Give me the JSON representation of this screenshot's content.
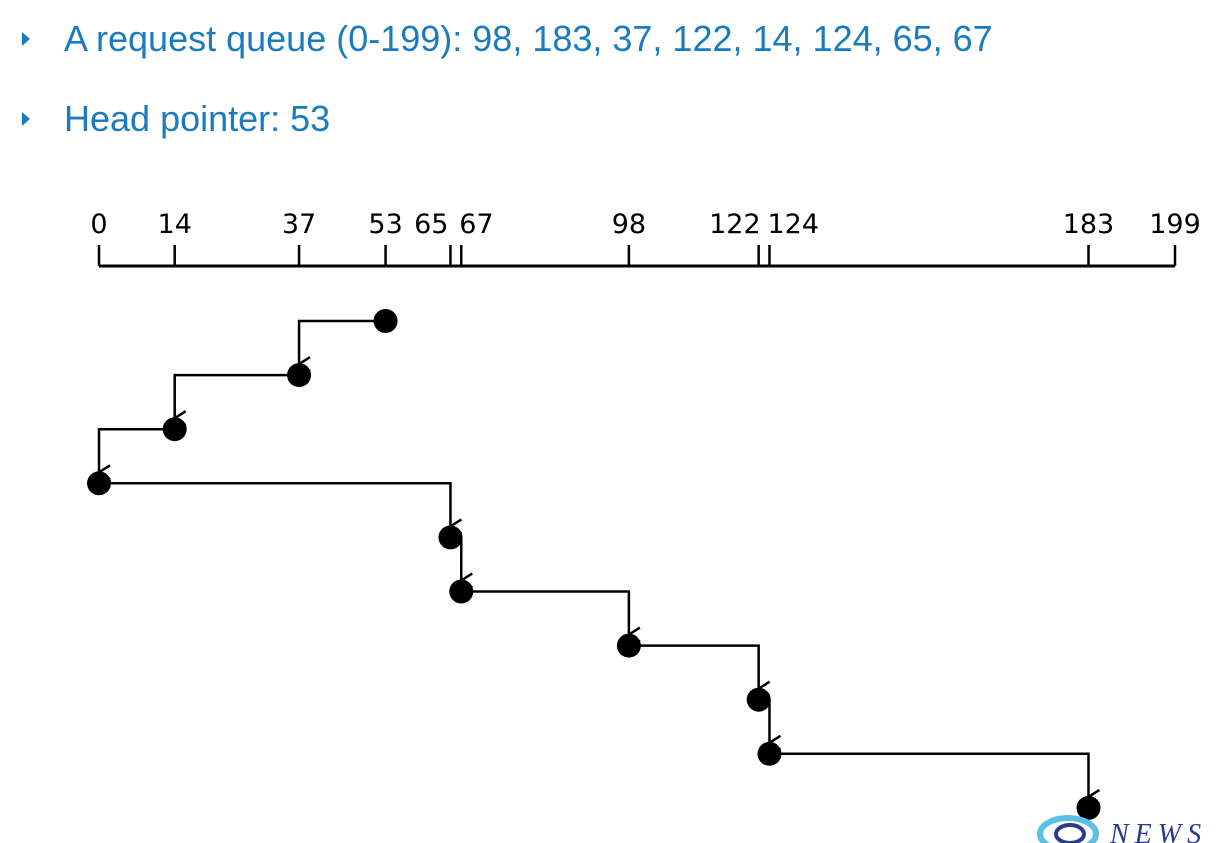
{
  "bullets": {
    "queue": "A request queue (0-199): 98, 183, 37, 122, 14, 124, 65, 67",
    "head": "Head pointer: 53"
  },
  "diagram": {
    "axis_min": 0,
    "axis_max": 199,
    "ticks": [
      0,
      14,
      37,
      53,
      65,
      67,
      98,
      122,
      124,
      183,
      199
    ],
    "tick_labels": [
      "0",
      "14",
      "37",
      "53",
      "65",
      "67",
      "98",
      "122",
      "124",
      "183",
      "199"
    ],
    "service_order": [
      53,
      37,
      14,
      0,
      65,
      67,
      98,
      122,
      124,
      183
    ]
  },
  "logo": {
    "text": "NEWS"
  },
  "colors": {
    "accent": "#1a7bbf",
    "line": "#000000",
    "logo": "#2a3a8c",
    "logo_ring": "#5bc0e8"
  }
}
